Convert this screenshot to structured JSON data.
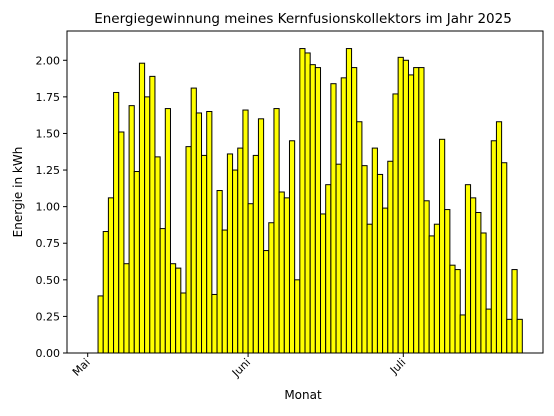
{
  "chart_data": {
    "type": "bar",
    "title": "Energiegewinnung meines Kernfusionskollektors im Jahr 2025",
    "xlabel": "Monat",
    "ylabel": "Energie in kWh",
    "ylim": [
      0,
      2.2
    ],
    "yticks": [
      0.0,
      0.25,
      0.5,
      0.75,
      1.0,
      1.25,
      1.5,
      1.75,
      2.0
    ],
    "ytick_labels": [
      "0.00",
      "0.25",
      "0.50",
      "0.75",
      "1.00",
      "1.25",
      "1.50",
      "1.75",
      "2.00"
    ],
    "xticks": [
      {
        "label": "Mai",
        "date": "2025-05-01"
      },
      {
        "label": "Juni",
        "date": "2025-06-01"
      },
      {
        "label": "Juli",
        "date": "2025-07-01"
      }
    ],
    "grid": false,
    "colors": {
      "bar_fill": "#ffff00",
      "bar_edge": "#000000"
    },
    "x": [
      "2025-05-03",
      "2025-05-04",
      "2025-05-05",
      "2025-05-06",
      "2025-05-07",
      "2025-05-08",
      "2025-05-09",
      "2025-05-10",
      "2025-05-11",
      "2025-05-12",
      "2025-05-13",
      "2025-05-14",
      "2025-05-15",
      "2025-05-16",
      "2025-05-17",
      "2025-05-18",
      "2025-05-19",
      "2025-05-20",
      "2025-05-21",
      "2025-05-22",
      "2025-05-23",
      "2025-05-24",
      "2025-05-25",
      "2025-05-26",
      "2025-05-27",
      "2025-05-28",
      "2025-05-29",
      "2025-05-30",
      "2025-05-31",
      "2025-06-01",
      "2025-06-02",
      "2025-06-03",
      "2025-06-04",
      "2025-06-05",
      "2025-06-06",
      "2025-06-07",
      "2025-06-08",
      "2025-06-09",
      "2025-06-10",
      "2025-06-11",
      "2025-06-12",
      "2025-06-13",
      "2025-06-14",
      "2025-06-15",
      "2025-06-16",
      "2025-06-17",
      "2025-06-18",
      "2025-06-19",
      "2025-06-20",
      "2025-06-21",
      "2025-06-22",
      "2025-06-23",
      "2025-06-24",
      "2025-06-25",
      "2025-06-26",
      "2025-06-27",
      "2025-06-28",
      "2025-06-29",
      "2025-06-30",
      "2025-07-01",
      "2025-07-02",
      "2025-07-03",
      "2025-07-04",
      "2025-07-05",
      "2025-07-06",
      "2025-07-07",
      "2025-07-08",
      "2025-07-09",
      "2025-07-10",
      "2025-07-11",
      "2025-07-12",
      "2025-07-13",
      "2025-07-14",
      "2025-07-15",
      "2025-07-16",
      "2025-07-17",
      "2025-07-18",
      "2025-07-19",
      "2025-07-20",
      "2025-07-21",
      "2025-07-22",
      "2025-07-23"
    ],
    "values": [
      0.39,
      0.83,
      1.06,
      1.78,
      1.51,
      0.61,
      1.69,
      1.24,
      1.98,
      1.75,
      1.89,
      1.34,
      0.85,
      1.67,
      0.61,
      0.58,
      0.41,
      1.41,
      1.81,
      1.64,
      1.35,
      1.65,
      0.4,
      1.11,
      0.84,
      1.36,
      1.25,
      1.4,
      1.66,
      1.02,
      1.35,
      1.6,
      0.7,
      0.89,
      1.67,
      1.1,
      1.06,
      1.45,
      0.5,
      2.08,
      2.05,
      1.97,
      1.95,
      0.95,
      1.15,
      1.84,
      1.29,
      1.88,
      2.08,
      1.95,
      1.58,
      1.28,
      0.88,
      1.4,
      1.22,
      0.99,
      1.31,
      1.77,
      2.02,
      2.0,
      1.9,
      1.95,
      1.95,
      1.04,
      0.8,
      0.88,
      1.46,
      0.98,
      0.6,
      0.57,
      0.26,
      1.15,
      1.06,
      0.96,
      0.82,
      0.3,
      1.45,
      1.58,
      1.3,
      0.23,
      0.57,
      0.23
    ]
  }
}
